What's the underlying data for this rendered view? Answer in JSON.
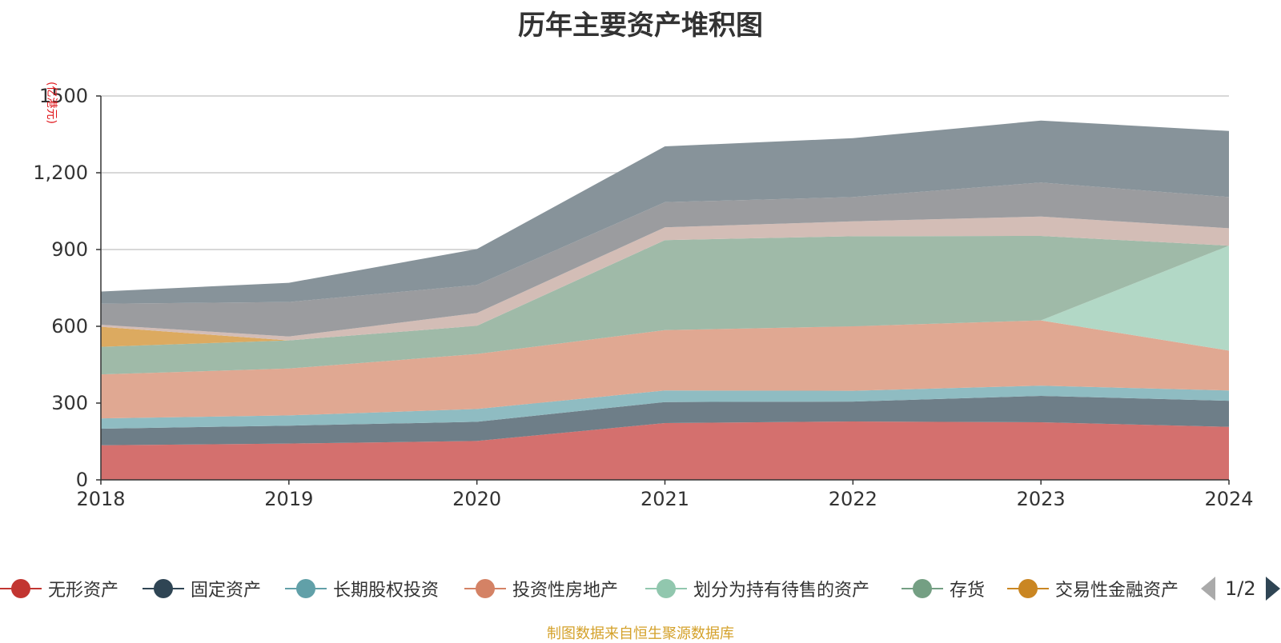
{
  "chart_data": {
    "type": "area",
    "title": "历年主要资产堆积图",
    "unit_label": "(亿港元)",
    "x": [
      "2018",
      "2019",
      "2020",
      "2021",
      "2022",
      "2023",
      "2024"
    ],
    "ylim": [
      0,
      1500
    ],
    "yticks": [
      "0",
      "300",
      "600",
      "900",
      "1,200",
      "1500"
    ],
    "ytick_values": [
      0,
      300,
      600,
      900,
      1200,
      1500
    ],
    "grid": true,
    "legend_position": "bottom",
    "series": [
      {
        "name": "无形资产",
        "color": "#c23531",
        "fill": "#d4706e",
        "values": [
          135,
          142,
          152,
          222,
          228,
          225,
          207
        ]
      },
      {
        "name": "固定资产",
        "color": "#2f4554",
        "fill": "#6e7e88",
        "values": [
          65,
          70,
          75,
          82,
          78,
          103,
          102
        ]
      },
      {
        "name": "长期股权投资",
        "color": "#61a0a8",
        "fill": "#8fbcc2",
        "values": [
          40,
          40,
          50,
          45,
          42,
          40,
          40
        ]
      },
      {
        "name": "投资性房地产",
        "color": "#d48265",
        "fill": "#e0a892",
        "values": [
          172,
          183,
          215,
          236,
          252,
          255,
          156
        ]
      },
      {
        "name": "划分为持有待售的资产",
        "color": "#91c7ae",
        "fill": "#b2d8c6",
        "values": [
          0,
          0,
          0,
          0,
          0,
          0,
          410
        ]
      },
      {
        "name": "存货",
        "color": "#749f83",
        "fill": "#9fbaa8",
        "values": [
          108,
          110,
          110,
          352,
          352,
          330,
          0
        ]
      },
      {
        "name": "交易性金融资产",
        "color": "#ca8622",
        "fill": "#dcaa60",
        "values": [
          78,
          0,
          0,
          0,
          0,
          0,
          0
        ]
      },
      {
        "name": "",
        "color": "#bda29a",
        "fill": "#d3bdb6",
        "values": [
          8,
          15,
          50,
          50,
          58,
          76,
          68
        ]
      },
      {
        "name": "",
        "color": "#6e7074",
        "fill": "#9b9c9f",
        "values": [
          82,
          135,
          110,
          98,
          95,
          133,
          122
        ]
      },
      {
        "name": "",
        "color": "#546570",
        "fill": "#87939a",
        "values": [
          48,
          75,
          140,
          218,
          230,
          242,
          258
        ]
      }
    ]
  },
  "legend": {
    "page_text": "1/2"
  },
  "source_note": "制图数据来自恒生聚源数据库"
}
